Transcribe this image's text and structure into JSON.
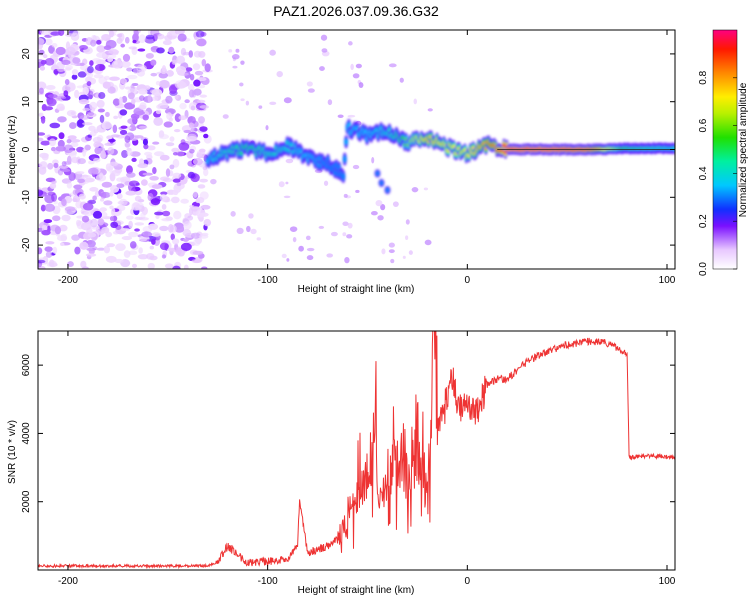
{
  "title": "PAZ1.2026.037.09.36.G32",
  "chart_data": [
    {
      "type": "heatmap",
      "xlabel": "Height of straight line (km)",
      "ylabel": "Frequency (Hz)",
      "xlim": [
        -215,
        104
      ],
      "ylim": [
        -25,
        25
      ],
      "xticks": [
        -200,
        -100,
        0,
        100
      ],
      "yticks": [
        -20,
        -10,
        0,
        10,
        20
      ],
      "colorbar": {
        "label": "Normalized spectral amplitude",
        "range": [
          0,
          1
        ],
        "ticks": [
          0.0,
          0.2,
          0.4,
          0.6,
          0.8
        ]
      },
      "noise_region": {
        "x_from": -215,
        "x_to": -130,
        "amplitude": [
          0.05,
          0.2
        ]
      },
      "signal_track": [
        {
          "x": -130,
          "f": -2.0,
          "a": 0.35
        },
        {
          "x": -120,
          "f": -0.5,
          "a": 0.45
        },
        {
          "x": -110,
          "f": 0.2,
          "a": 0.5
        },
        {
          "x": -100,
          "f": -0.8,
          "a": 0.45
        },
        {
          "x": -90,
          "f": 0.8,
          "a": 0.4
        },
        {
          "x": -80,
          "f": -1.5,
          "a": 0.35
        },
        {
          "x": -70,
          "f": -3.0,
          "a": 0.3
        },
        {
          "x": -62,
          "f": -5.0,
          "a": 0.3
        },
        {
          "x": -60,
          "f": 4.5,
          "a": 0.35
        },
        {
          "x": -50,
          "f": 3.0,
          "a": 0.35
        },
        {
          "x": -40,
          "f": 4.0,
          "a": 0.4
        },
        {
          "x": -30,
          "f": 1.5,
          "a": 0.6
        },
        {
          "x": -20,
          "f": 2.5,
          "a": 0.75
        },
        {
          "x": -10,
          "f": 0.5,
          "a": 0.7
        },
        {
          "x": 0,
          "f": -1.0,
          "a": 0.7
        },
        {
          "x": 10,
          "f": 1.0,
          "a": 0.8
        },
        {
          "x": 20,
          "f": 0.0,
          "a": 0.95
        },
        {
          "x": 40,
          "f": 0.0,
          "a": 0.95
        },
        {
          "x": 60,
          "f": 0.0,
          "a": 0.9
        },
        {
          "x": 80,
          "f": 0.2,
          "a": 0.5
        },
        {
          "x": 104,
          "f": 0.3,
          "a": 0.4
        }
      ],
      "side_branch": [
        {
          "x": -45,
          "f": -5.0,
          "a": 0.3
        },
        {
          "x": -43,
          "f": -7.0,
          "a": 0.3
        },
        {
          "x": -40,
          "f": -8.5,
          "a": 0.3
        }
      ]
    },
    {
      "type": "line",
      "xlabel": "Height of straight line (km)",
      "ylabel": "SNR (10 * v/v)",
      "xlim": [
        -215,
        104
      ],
      "ylim": [
        0,
        7000
      ],
      "xticks": [
        -200,
        -100,
        0,
        100
      ],
      "yticks": [
        2000,
        4000,
        6000
      ],
      "series": [
        {
          "name": "SNR",
          "color": "#ee3333",
          "x": [
            -215,
            -130,
            -125,
            -120,
            -110,
            -100,
            -90,
            -85,
            -84,
            -80,
            -70,
            -60,
            -55,
            -50,
            -46,
            -45,
            -40,
            -35,
            -30,
            -25,
            -20,
            -18,
            -17,
            -15,
            -10,
            -8,
            -5,
            0,
            5,
            10,
            15,
            20,
            30,
            40,
            50,
            60,
            70,
            80,
            81,
            82,
            90,
            104
          ],
          "y": [
            120,
            120,
            250,
            700,
            200,
            250,
            350,
            700,
            2100,
            500,
            700,
            1200,
            2300,
            2600,
            4200,
            2000,
            2300,
            3400,
            2700,
            3500,
            2100,
            3700,
            7000,
            4100,
            5000,
            5900,
            4800,
            4900,
            4700,
            5400,
            5600,
            5600,
            6100,
            6400,
            6600,
            6700,
            6650,
            6300,
            3300,
            3300,
            3350,
            3300
          ]
        }
      ]
    }
  ]
}
